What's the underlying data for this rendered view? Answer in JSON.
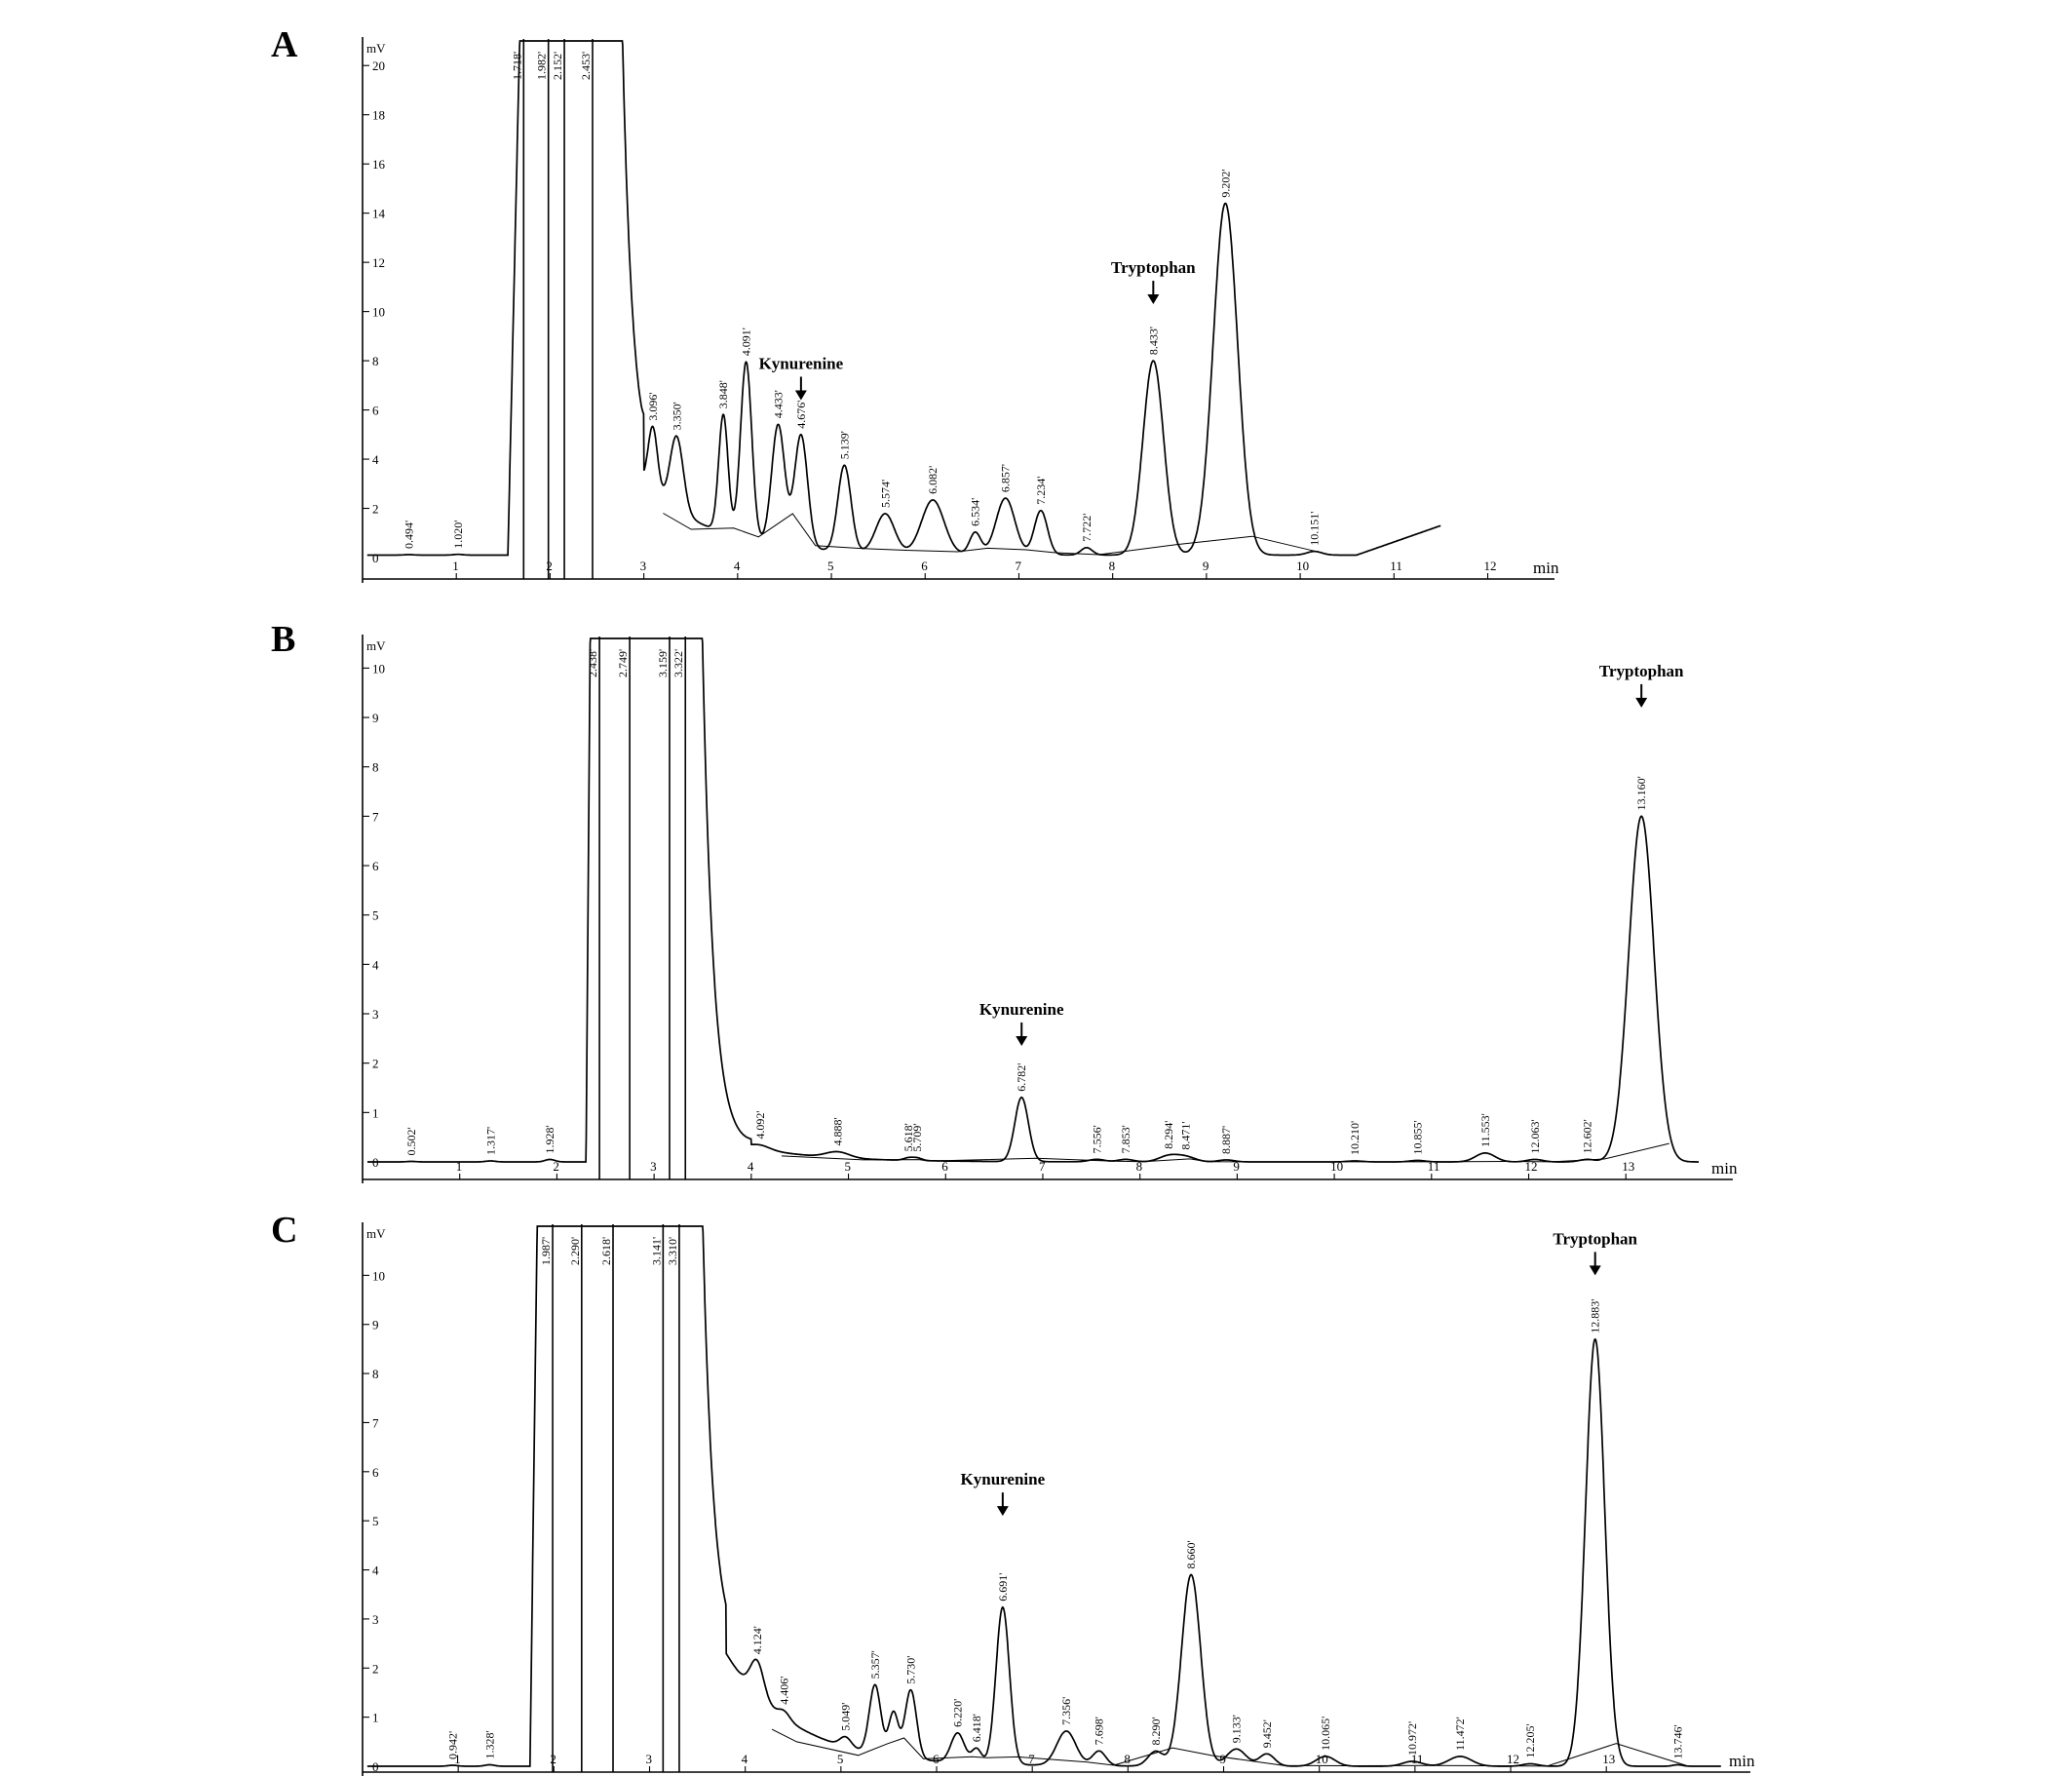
{
  "chart_data": [
    {
      "panel": "A",
      "type": "line",
      "ylabel": "mV",
      "xlabel": "min",
      "xlim": [
        0,
        12.4
      ],
      "ylim": [
        0,
        21
      ],
      "xticks": [
        1,
        2,
        3,
        4,
        5,
        6,
        7,
        8,
        9,
        10,
        11,
        12
      ],
      "yticks": [
        2,
        4,
        6,
        8,
        10,
        12,
        14,
        16,
        18,
        20
      ],
      "base": 0.1,
      "peaks": [
        {
          "t": 0.494,
          "h": 0.02,
          "w": 0.05,
          "label": "0.494'"
        },
        {
          "t": 1.02,
          "h": 0.03,
          "w": 0.05,
          "label": "1.020'"
        },
        {
          "t": 3.096,
          "h": 2.6,
          "w": 0.05,
          "label": "3.096'"
        },
        {
          "t": 3.35,
          "h": 3.0,
          "w": 0.07,
          "label": "3.350'"
        },
        {
          "t": 3.848,
          "h": 4.8,
          "w": 0.05,
          "label": "3.848'"
        },
        {
          "t": 4.091,
          "h": 7.2,
          "w": 0.06,
          "label": "4.091'"
        },
        {
          "t": 4.433,
          "h": 4.9,
          "w": 0.07,
          "label": "4.433'"
        },
        {
          "t": 4.676,
          "h": 4.6,
          "w": 0.07,
          "label": "4.676'"
        },
        {
          "t": 5.139,
          "h": 3.5,
          "w": 0.07,
          "label": "5.139'"
        },
        {
          "t": 5.574,
          "h": 1.6,
          "w": 0.1,
          "label": "5.574'"
        },
        {
          "t": 6.082,
          "h": 2.2,
          "w": 0.12,
          "label": "6.082'"
        },
        {
          "t": 6.534,
          "h": 0.9,
          "w": 0.06,
          "label": "6.534'"
        },
        {
          "t": 6.857,
          "h": 2.3,
          "w": 0.1,
          "label": "6.857'"
        },
        {
          "t": 7.234,
          "h": 1.8,
          "w": 0.07,
          "label": "7.234'"
        },
        {
          "t": 7.722,
          "h": 0.3,
          "w": 0.06,
          "label": "7.722'"
        },
        {
          "t": 8.433,
          "h": 7.9,
          "w": 0.11,
          "label": "8.433'"
        },
        {
          "t": 9.202,
          "h": 14.3,
          "w": 0.13,
          "label": "9.202'"
        },
        {
          "t": 10.151,
          "h": 0.15,
          "w": 0.08,
          "label": "10.151'"
        }
      ],
      "spikes": [
        {
          "t": 1.718,
          "label": "1.718'"
        },
        {
          "t": 1.982,
          "label": "1.982'"
        },
        {
          "t": 2.152,
          "label": "2.152'"
        },
        {
          "t": 2.453,
          "label": "2.453'"
        }
      ],
      "front": {
        "rise_start": 1.55,
        "rise_end": 1.7,
        "tail_start": 2.75,
        "tail_end": 3.0,
        "tail_level": 3.0
      },
      "end": {
        "t_end": 11.5,
        "level": 1.2
      },
      "annotations": [
        {
          "text": "Kynurenine",
          "t": 4.676,
          "y_tip": 6.4
        },
        {
          "text": "Tryptophan",
          "t": 8.433,
          "y_tip": 10.3
        }
      ]
    },
    {
      "panel": "B",
      "type": "line",
      "ylabel": "mV",
      "xlabel": "min",
      "xlim": [
        0,
        13.8
      ],
      "ylim": [
        0,
        10.6
      ],
      "xticks": [
        1,
        2,
        3,
        4,
        5,
        6,
        7,
        8,
        9,
        10,
        11,
        12,
        13
      ],
      "yticks": [
        1,
        2,
        3,
        4,
        5,
        6,
        7,
        8,
        9,
        10
      ],
      "base": 0.0,
      "peaks": [
        {
          "t": 0.502,
          "h": 0.01,
          "w": 0.05,
          "label": "0.502'"
        },
        {
          "t": 1.317,
          "h": 0.02,
          "w": 0.05,
          "label": "1.317'"
        },
        {
          "t": 1.928,
          "h": 0.05,
          "w": 0.05,
          "label": "1.928'"
        },
        {
          "t": 4.092,
          "h": 0.08,
          "w": 0.1,
          "label": "4.092'"
        },
        {
          "t": 4.888,
          "h": 0.12,
          "w": 0.12,
          "label": "4.888'"
        },
        {
          "t": 5.618,
          "h": 0.05,
          "w": 0.05,
          "label": "5.618'"
        },
        {
          "t": 5.709,
          "h": 0.05,
          "w": 0.05,
          "label": "5.709'"
        },
        {
          "t": 6.782,
          "h": 1.3,
          "w": 0.07,
          "label": "6.782'"
        },
        {
          "t": 7.556,
          "h": 0.05,
          "w": 0.08,
          "label": "7.556'"
        },
        {
          "t": 7.853,
          "h": 0.05,
          "w": 0.08,
          "label": "7.853'"
        },
        {
          "t": 8.294,
          "h": 0.12,
          "w": 0.1,
          "label": "8.294'"
        },
        {
          "t": 8.471,
          "h": 0.1,
          "w": 0.1,
          "label": "8.471'"
        },
        {
          "t": 8.887,
          "h": 0.04,
          "w": 0.08,
          "label": "8.887'"
        },
        {
          "t": 10.21,
          "h": 0.02,
          "w": 0.08,
          "label": "10.210'"
        },
        {
          "t": 10.855,
          "h": 0.03,
          "w": 0.08,
          "label": "10.855'"
        },
        {
          "t": 11.553,
          "h": 0.18,
          "w": 0.1,
          "label": "11.553'"
        },
        {
          "t": 12.063,
          "h": 0.05,
          "w": 0.08,
          "label": "12.063'"
        },
        {
          "t": 12.602,
          "h": 0.05,
          "w": 0.08,
          "label": "12.602'"
        },
        {
          "t": 13.16,
          "h": 7.0,
          "w": 0.13,
          "label": "13.160'"
        }
      ],
      "spikes": [
        {
          "t": 2.438,
          "label": "2.438'"
        },
        {
          "t": 2.749,
          "label": "2.749'"
        },
        {
          "t": 3.159,
          "label": "3.159'"
        },
        {
          "t": 3.322,
          "label": "3.322'"
        }
      ],
      "front": {
        "rise_start": 2.3,
        "rise_end": 2.4,
        "tail_start": 3.4,
        "tail_end": 4.0,
        "tail_level": 0.3
      },
      "end": {
        "t_end": 13.75,
        "level": 0.15
      },
      "annotations": [
        {
          "text": "Kynurenine",
          "t": 6.782,
          "y_tip": 2.35
        },
        {
          "text": "Tryptophan",
          "t": 13.16,
          "y_tip": 9.2
        }
      ]
    },
    {
      "panel": "C",
      "type": "line",
      "ylabel": "mV",
      "xlabel": "min",
      "xlim": [
        0,
        14.2
      ],
      "ylim": [
        0,
        11
      ],
      "xticks": [
        1,
        2,
        3,
        4,
        5,
        6,
        7,
        8,
        9,
        10,
        11,
        12,
        13
      ],
      "yticks": [
        1,
        2,
        3,
        4,
        5,
        6,
        7,
        8,
        9,
        10
      ],
      "base": 0.0,
      "peaks": [
        {
          "t": 0.942,
          "h": 0.02,
          "w": 0.05,
          "label": "0.942'"
        },
        {
          "t": 1.328,
          "h": 0.03,
          "w": 0.05,
          "label": "1.328'"
        },
        {
          "t": 4.124,
          "h": 0.7,
          "w": 0.07,
          "label": "4.124'"
        },
        {
          "t": 4.406,
          "h": 0.15,
          "w": 0.06,
          "label": "4.406'"
        },
        {
          "t": 5.049,
          "h": 0.2,
          "w": 0.06,
          "label": "5.049'"
        },
        {
          "t": 5.357,
          "h": 1.4,
          "w": 0.06,
          "label": "5.357'"
        },
        {
          "t": 5.55,
          "h": 0.9,
          "w": 0.05,
          "label": ""
        },
        {
          "t": 5.73,
          "h": 1.4,
          "w": 0.06,
          "label": "5.730'"
        },
        {
          "t": 6.22,
          "h": 0.6,
          "w": 0.07,
          "label": "6.220'"
        },
        {
          "t": 6.418,
          "h": 0.3,
          "w": 0.05,
          "label": "6.418'"
        },
        {
          "t": 6.691,
          "h": 3.2,
          "w": 0.07,
          "label": "6.691'"
        },
        {
          "t": 7.356,
          "h": 0.7,
          "w": 0.1,
          "label": "7.356'"
        },
        {
          "t": 7.698,
          "h": 0.3,
          "w": 0.07,
          "label": "7.698'"
        },
        {
          "t": 8.29,
          "h": 0.3,
          "w": 0.08,
          "label": "8.290'"
        },
        {
          "t": 8.66,
          "h": 3.9,
          "w": 0.1,
          "label": "8.660'"
        },
        {
          "t": 9.133,
          "h": 0.35,
          "w": 0.1,
          "label": "9.133'"
        },
        {
          "t": 9.452,
          "h": 0.25,
          "w": 0.08,
          "label": "9.452'"
        },
        {
          "t": 10.065,
          "h": 0.2,
          "w": 0.1,
          "label": "10.065'"
        },
        {
          "t": 10.972,
          "h": 0.1,
          "w": 0.1,
          "label": "10.972'"
        },
        {
          "t": 11.472,
          "h": 0.2,
          "w": 0.12,
          "label": "11.472'"
        },
        {
          "t": 12.205,
          "h": 0.05,
          "w": 0.08,
          "label": "12.205'"
        },
        {
          "t": 12.883,
          "h": 8.7,
          "w": 0.1,
          "label": "12.883'"
        },
        {
          "t": 13.746,
          "h": 0.03,
          "w": 0.05,
          "label": "13.746'"
        }
      ],
      "spikes": [
        {
          "t": 1.987,
          "label": "1.987'"
        },
        {
          "t": 2.29,
          "label": "2.290'"
        },
        {
          "t": 2.618,
          "label": "2.618'"
        },
        {
          "t": 3.141,
          "label": "3.141'"
        },
        {
          "t": 3.31,
          "label": "3.310'"
        }
      ],
      "front": {
        "rise_start": 1.75,
        "rise_end": 1.92,
        "tail_start": 3.45,
        "tail_end": 3.8,
        "tail_level": 2.3
      },
      "end": {
        "t_end": 14.2,
        "level": 0.05
      },
      "annotations": [
        {
          "text": "Kynurenine",
          "t": 6.691,
          "y_tip": 5.1
        },
        {
          "text": "Tryptophan",
          "t": 12.883,
          "y_tip": 10.0
        }
      ]
    }
  ]
}
